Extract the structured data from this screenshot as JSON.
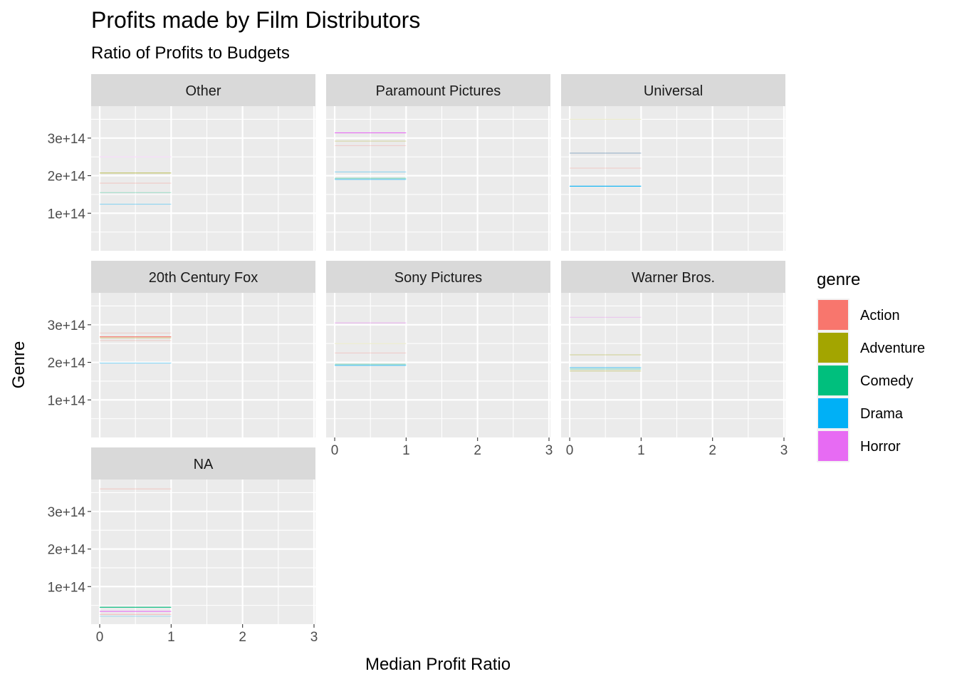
{
  "chart_data": {
    "type": "bar",
    "title": "Profits made by Film Distributors",
    "subtitle": "Ratio of Profits to Budgets",
    "xlabel": "Median Profit Ratio",
    "ylabel": "Genre",
    "xlim": [
      -0.12,
      3.02
    ],
    "ylim": [
      0,
      385000000000000.0
    ],
    "x_ticks": [
      0,
      1,
      2,
      3
    ],
    "x_tick_labels": [
      "0",
      "1",
      "2",
      "3"
    ],
    "y_ticks": [
      100000000000000.0,
      200000000000000.0,
      300000000000000.0
    ],
    "y_tick_labels": [
      "1e+14",
      "2e+14",
      "3e+14"
    ],
    "grid": true,
    "bar_width": 1,
    "legend": {
      "title": "genre",
      "position": "right",
      "entries": [
        {
          "label": "Action",
          "color": "#F8766D"
        },
        {
          "label": "Adventure",
          "color": "#A3A500"
        },
        {
          "label": "Comedy",
          "color": "#00BF7D"
        },
        {
          "label": "Drama",
          "color": "#00B0F6"
        },
        {
          "label": "Horror",
          "color": "#E76BF3"
        }
      ]
    },
    "facets": [
      {
        "label": "Other",
        "segments": [
          {
            "genre": "Horror",
            "y": 250000000000000.0,
            "opacity": 0.25
          },
          {
            "genre": "Adventure",
            "y": 207000000000000.0,
            "opacity": 0.6
          },
          {
            "genre": "Action",
            "y": 180000000000000.0,
            "opacity": 0.3
          },
          {
            "genre": "Comedy",
            "y": 155000000000000.0,
            "opacity": 0.3
          },
          {
            "genre": "Drama",
            "y": 124000000000000.0,
            "opacity": 0.45
          }
        ]
      },
      {
        "label": "Paramount Pictures",
        "segments": [
          {
            "genre": "Horror",
            "y": 314000000000000.0,
            "opacity": 1
          },
          {
            "genre": "Adventure",
            "y": 292000000000000.0,
            "opacity": 0.3
          },
          {
            "genre": "Action",
            "y": 280000000000000.0,
            "opacity": 0.3
          },
          {
            "genre": "Drama",
            "y": 210000000000000.0,
            "opacity": 0.4
          },
          {
            "genre": "Comedy",
            "y": 193000000000000.0,
            "opacity": 0.45
          },
          {
            "genre": "Drama",
            "y": 190000000000000.0,
            "opacity": 0.6
          }
        ]
      },
      {
        "label": "Universal",
        "segments": [
          {
            "genre": "Adventure",
            "y": 350000000000000.0,
            "opacity": 0.2
          },
          {
            "genre": "Drama",
            "y": 260000000000000.0,
            "opacity": 0.5
          },
          {
            "genre": "Action",
            "y": 260000000000000.0,
            "opacity": 0.3
          },
          {
            "genre": "Action",
            "y": 220000000000000.0,
            "opacity": 0.3
          },
          {
            "genre": "Drama",
            "y": 172000000000000.0,
            "opacity": 1
          }
        ]
      },
      {
        "label": "20th Century Fox",
        "segments": [
          {
            "genre": "Action",
            "y": 278000000000000.0,
            "opacity": 0.25
          },
          {
            "genre": "Action",
            "y": 268000000000000.0,
            "opacity": 1
          },
          {
            "genre": "Adventure",
            "y": 265000000000000.0,
            "opacity": 0.35
          },
          {
            "genre": "Action",
            "y": 258000000000000.0,
            "opacity": 0.25
          },
          {
            "genre": "Drama",
            "y": 198000000000000.0,
            "opacity": 0.45
          }
        ]
      },
      {
        "label": "Sony Pictures",
        "segments": [
          {
            "genre": "Horror",
            "y": 305000000000000.0,
            "opacity": 0.45
          },
          {
            "genre": "Adventure",
            "y": 250000000000000.0,
            "opacity": 0.2
          },
          {
            "genre": "Action",
            "y": 225000000000000.0,
            "opacity": 0.3
          },
          {
            "genre": "Comedy",
            "y": 195000000000000.0,
            "opacity": 0.4
          },
          {
            "genre": "Drama",
            "y": 192000000000000.0,
            "opacity": 0.7
          }
        ]
      },
      {
        "label": "Warner Bros.",
        "segments": [
          {
            "genre": "Horror",
            "y": 320000000000000.0,
            "opacity": 0.3
          },
          {
            "genre": "Adventure",
            "y": 220000000000000.0,
            "opacity": 0.4
          },
          {
            "genre": "Drama",
            "y": 186000000000000.0,
            "opacity": 0.6
          },
          {
            "genre": "Comedy",
            "y": 182000000000000.0,
            "opacity": 0.4
          },
          {
            "genre": "Adventure",
            "y": 177000000000000.0,
            "opacity": 0.4
          }
        ]
      },
      {
        "label": "NA",
        "segments": [
          {
            "genre": "Action",
            "y": 360000000000000.0,
            "opacity": 0.3
          },
          {
            "genre": "Comedy",
            "y": 45000000000000.0,
            "opacity": 1
          },
          {
            "genre": "Horror",
            "y": 34000000000000.0,
            "opacity": 1
          },
          {
            "genre": "Action",
            "y": 26000000000000.0,
            "opacity": 0.4
          },
          {
            "genre": "Drama",
            "y": 21000000000000.0,
            "opacity": 0.3
          }
        ]
      }
    ]
  }
}
